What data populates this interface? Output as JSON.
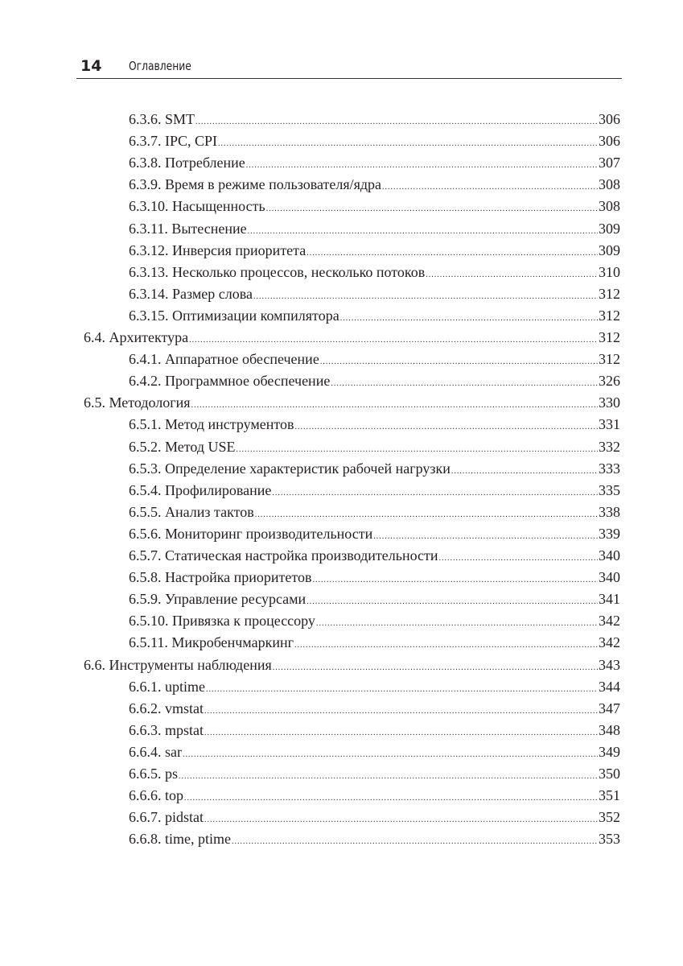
{
  "header": {
    "page_number": "14",
    "title": "Оглавление"
  },
  "toc": [
    {
      "level": 3,
      "title": "6.3.6. SMT",
      "page": "306"
    },
    {
      "level": 3,
      "title": "6.3.7. IPC, CPI",
      "page": "306"
    },
    {
      "level": 3,
      "title": "6.3.8. Потребление",
      "page": "307"
    },
    {
      "level": 3,
      "title": "6.3.9. Время в режиме пользователя/ядра",
      "page": "308"
    },
    {
      "level": 3,
      "title": "6.3.10. Насыщенность",
      "page": "308"
    },
    {
      "level": 3,
      "title": "6.3.11. Вытеснение",
      "page": "309"
    },
    {
      "level": 3,
      "title": "6.3.12. Инверсия приоритета",
      "page": "309"
    },
    {
      "level": 3,
      "title": "6.3.13. Несколько процессов, несколько потоков",
      "page": "310"
    },
    {
      "level": 3,
      "title": "6.3.14. Размер слова",
      "page": "312"
    },
    {
      "level": 3,
      "title": "6.3.15. Оптимизации компилятора",
      "page": "312"
    },
    {
      "level": 2,
      "title": "6.4. Архитектура",
      "page": "312"
    },
    {
      "level": 3,
      "title": "6.4.1. Аппаратное обеспечение",
      "page": "312"
    },
    {
      "level": 3,
      "title": "6.4.2. Программное обеспечение",
      "page": "326"
    },
    {
      "level": 2,
      "title": "6.5. Методология",
      "page": "330"
    },
    {
      "level": 3,
      "title": "6.5.1. Метод инструментов",
      "page": "331"
    },
    {
      "level": 3,
      "title": "6.5.2. Метод USE",
      "page": "332"
    },
    {
      "level": 3,
      "title": "6.5.3. Определение характеристик рабочей нагрузки",
      "page": "333"
    },
    {
      "level": 3,
      "title": "6.5.4. Профилирование",
      "page": "335"
    },
    {
      "level": 3,
      "title": "6.5.5. Анализ тактов",
      "page": "338"
    },
    {
      "level": 3,
      "title": "6.5.6. Мониторинг производительности",
      "page": "339"
    },
    {
      "level": 3,
      "title": "6.5.7. Статическая настройка производительности",
      "page": "340"
    },
    {
      "level": 3,
      "title": "6.5.8. Настройка приоритетов",
      "page": "340"
    },
    {
      "level": 3,
      "title": "6.5.9. Управление ресурсами",
      "page": "341"
    },
    {
      "level": 3,
      "title": "6.5.10. Привязка к процессору",
      "page": "342"
    },
    {
      "level": 3,
      "title": "6.5.11. Микробенчмаркинг",
      "page": "342"
    },
    {
      "level": 2,
      "title": "6.6. Инструменты наблюдения",
      "page": "343"
    },
    {
      "level": 3,
      "title": "6.6.1. uptime",
      "page": "344"
    },
    {
      "level": 3,
      "title": "6.6.2. vmstat",
      "page": "347"
    },
    {
      "level": 3,
      "title": "6.6.3. mpstat",
      "page": "348"
    },
    {
      "level": 3,
      "title": "6.6.4. sar",
      "page": "349"
    },
    {
      "level": 3,
      "title": "6.6.5. ps",
      "page": "350"
    },
    {
      "level": 3,
      "title": "6.6.6. top",
      "page": "351"
    },
    {
      "level": 3,
      "title": "6.6.7. pidstat",
      "page": "352"
    },
    {
      "level": 3,
      "title": "6.6.8. time, ptime",
      "page": "353"
    }
  ]
}
